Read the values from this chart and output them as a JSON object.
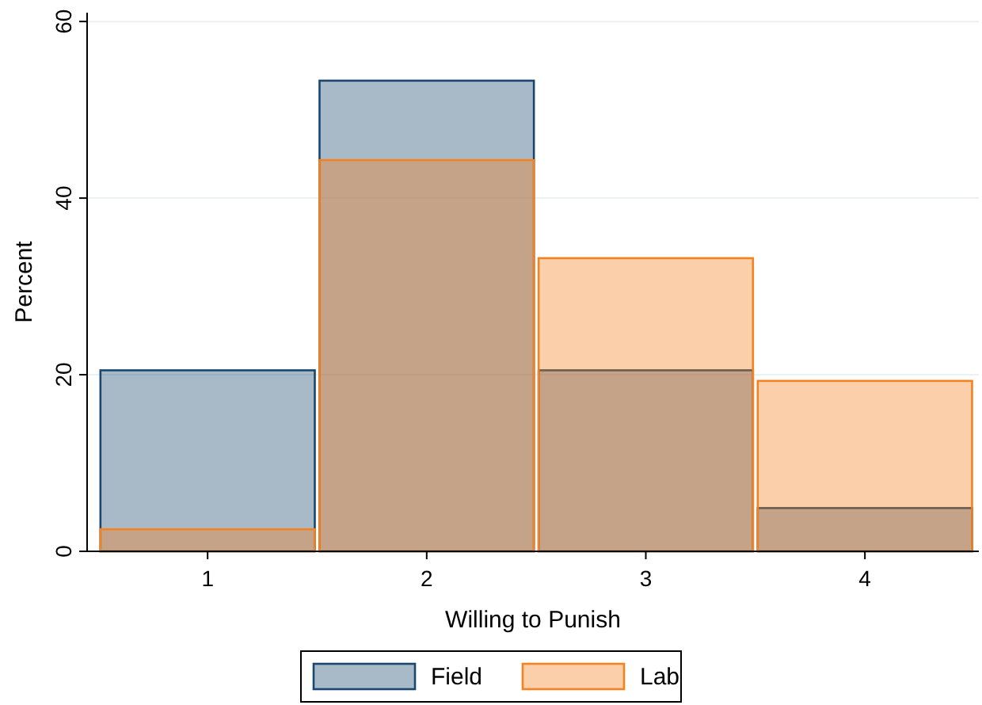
{
  "chart_data": {
    "type": "histogram",
    "xlabel": "Willing to Punish",
    "ylabel": "Percent",
    "bins": [
      0.5,
      1.5,
      2.5,
      3.5,
      4.5
    ],
    "series": [
      {
        "name": "Field",
        "color": "#1a476f",
        "values": [
          20.5,
          53.3,
          20.5,
          4.9
        ]
      },
      {
        "name": "Lab",
        "color": "#f58220",
        "values": [
          2.5,
          44.3,
          33.2,
          19.3
        ]
      }
    ],
    "xlim": [
      0.45,
      4.52
    ],
    "xticks": [
      1,
      2,
      3,
      4
    ],
    "ylim": [
      0,
      61
    ],
    "yticks": [
      0,
      20,
      40,
      60
    ],
    "grid": "y",
    "legend": "bottom"
  }
}
